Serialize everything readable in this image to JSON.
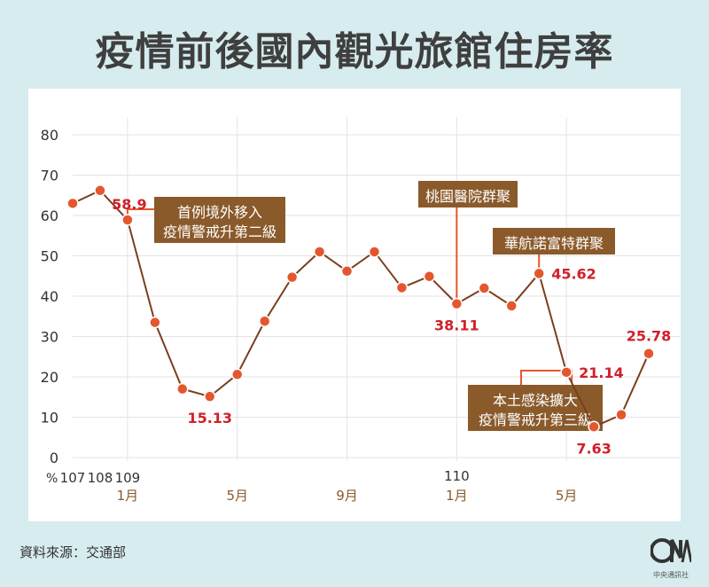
{
  "title": "疫情前後國內觀光旅館住房率",
  "source": "資料來源：交通部",
  "logo": {
    "mark": "CNA",
    "caption": "中央通訊社"
  },
  "colors": {
    "line": "#7a3f1e",
    "marker": "#e4572e",
    "label": "#d0202a",
    "annotation": "#8a5a2b",
    "gridline": "#e3e3e3",
    "panel": "#ffffff",
    "background": "#d6ecef"
  },
  "chart_data": {
    "type": "line",
    "unit": "%",
    "ylim": [
      0,
      80
    ],
    "yticks": [
      0,
      10,
      20,
      30,
      40,
      50,
      60,
      70,
      80
    ],
    "grid": true,
    "x": [
      "107",
      "108",
      "109-1",
      "109-2",
      "109-3",
      "109-4",
      "109-5",
      "109-6",
      "109-7",
      "109-8",
      "109-9",
      "109-10",
      "109-11",
      "109-12",
      "110-1",
      "110-2",
      "110-3",
      "110-4",
      "110-5",
      "110-6",
      "110-7",
      "110-8"
    ],
    "values": [
      63,
      66.2,
      58.9,
      33.5,
      17,
      15.13,
      20.6,
      33.8,
      44.7,
      51,
      46.2,
      51,
      42.1,
      44.9,
      38.11,
      42,
      37.6,
      45.62,
      21.14,
      7.63,
      10.6,
      25.78
    ],
    "year_labels": [
      {
        "text": "107",
        "x": "107"
      },
      {
        "text": "108",
        "x": "108"
      },
      {
        "text": "109",
        "x": "109-1"
      },
      {
        "text": "110",
        "x": "110-1"
      }
    ],
    "month_labels": [
      {
        "text": "1月",
        "x": "109-1"
      },
      {
        "text": "5月",
        "x": "109-5"
      },
      {
        "text": "9月",
        "x": "109-9"
      },
      {
        "text": "1月",
        "x": "110-1"
      },
      {
        "text": "5月",
        "x": "110-5"
      }
    ],
    "data_labels": [
      {
        "x": "109-1",
        "text": "58.9",
        "pos": "above-right"
      },
      {
        "x": "109-4",
        "text": "15.13",
        "pos": "below"
      },
      {
        "x": "110-1",
        "text": "38.11",
        "pos": "below"
      },
      {
        "x": "110-4",
        "text": "45.62",
        "pos": "right"
      },
      {
        "x": "110-5",
        "text": "21.14",
        "pos": "right"
      },
      {
        "x": "110-6",
        "text": "7.63",
        "pos": "below"
      },
      {
        "x": "110-8",
        "text": "25.78",
        "pos": "above"
      }
    ],
    "annotations": [
      {
        "x": "109-1",
        "lines": [
          "首例境外移入",
          "疫情警戒升第二級"
        ]
      },
      {
        "x": "110-1",
        "lines": [
          "桃園醫院群聚"
        ]
      },
      {
        "x": "110-4",
        "lines": [
          "華航諾富特群聚"
        ]
      },
      {
        "x": "110-5",
        "lines": [
          "本土感染擴大",
          "疫情警戒升第三級"
        ]
      }
    ]
  }
}
